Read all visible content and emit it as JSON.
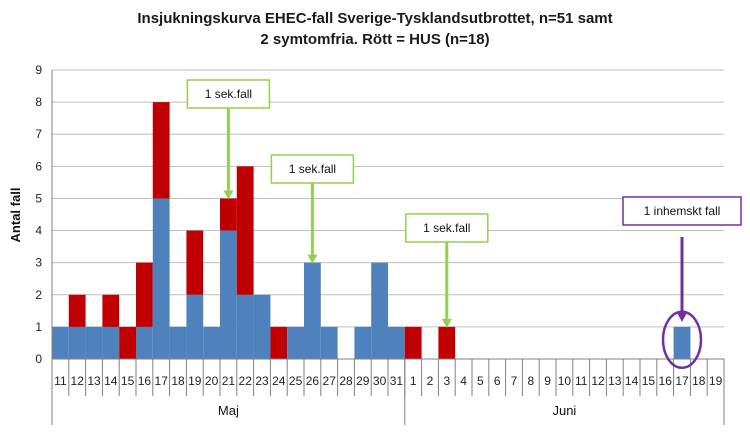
{
  "chart_data": {
    "type": "bar",
    "stacked": true,
    "title_line1": "Insjukningskurva EHEC-fall Sverige-Tysklandsutbrottet, n=51 samt",
    "title_line2": "2 symtomfria. Rött = HUS (n=18)",
    "ylabel": "Antal fall",
    "ylim": [
      0,
      9
    ],
    "yticks": [
      0,
      1,
      2,
      3,
      4,
      5,
      6,
      7,
      8,
      9
    ],
    "grid": true,
    "categories": [
      "11",
      "12",
      "13",
      "14",
      "15",
      "16",
      "17",
      "18",
      "19",
      "20",
      "21",
      "22",
      "23",
      "24",
      "25",
      "26",
      "27",
      "28",
      "29",
      "30",
      "31",
      "1",
      "2",
      "3",
      "4",
      "5",
      "6",
      "7",
      "8",
      "9",
      "10",
      "11",
      "12",
      "13",
      "14",
      "15",
      "16",
      "17",
      "18",
      "19"
    ],
    "months": [
      {
        "label": "Maj",
        "start": 0,
        "end": 21
      },
      {
        "label": "Juni",
        "start": 21,
        "end": 40
      }
    ],
    "series": [
      {
        "color": "#4f81bd",
        "values": [
          1,
          1,
          1,
          1,
          0,
          1,
          5,
          1,
          2,
          1,
          4,
          2,
          2,
          0,
          1,
          3,
          1,
          0,
          1,
          3,
          1,
          0,
          0,
          0,
          0,
          0,
          0,
          0,
          0,
          0,
          0,
          0,
          0,
          0,
          0,
          0,
          0,
          1,
          0,
          0
        ]
      },
      {
        "color": "#c00000",
        "values": [
          0,
          1,
          0,
          1,
          1,
          2,
          3,
          0,
          2,
          0,
          1,
          4,
          0,
          1,
          0,
          0,
          0,
          0,
          0,
          0,
          0,
          1,
          0,
          1,
          0,
          0,
          0,
          0,
          0,
          0,
          0,
          0,
          0,
          0,
          0,
          0,
          0,
          0,
          0,
          0
        ]
      }
    ],
    "annotations": [
      {
        "text": "1 sek.fall",
        "index": 10,
        "color": "#92d050",
        "target": 5
      },
      {
        "text": "1 sek.fall",
        "index": 15,
        "color": "#92d050",
        "target": 3
      },
      {
        "text": "1 sek.fall",
        "index": 23,
        "color": "#92d050",
        "target": 1
      },
      {
        "text": "1 inhemskt fall",
        "index": 37,
        "color": "#7030a0",
        "target": 1
      }
    ]
  }
}
